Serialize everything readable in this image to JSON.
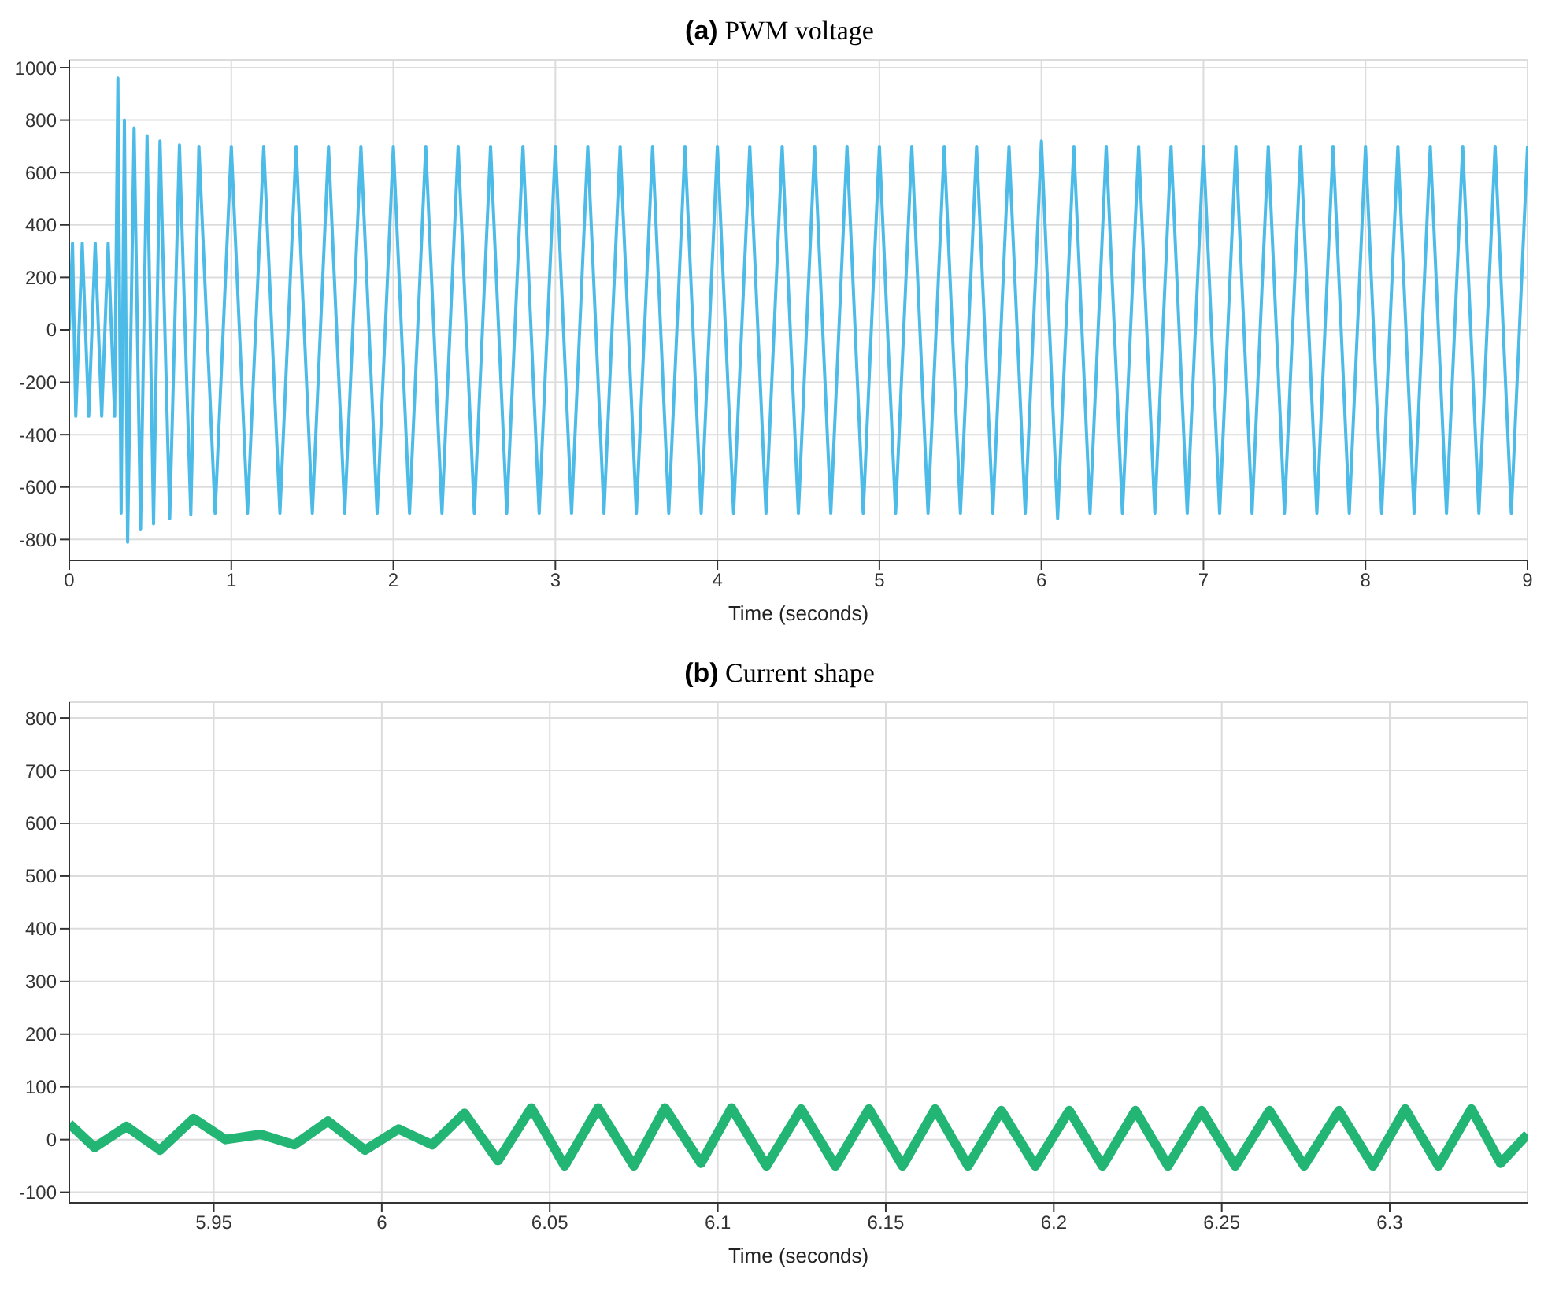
{
  "chart_data": [
    {
      "type": "line",
      "title": "(a) PWM voltage",
      "xlabel": "Time (seconds)",
      "xlim": [
        0,
        9
      ],
      "xticks": [
        0,
        1,
        2,
        3,
        4,
        5,
        6,
        7,
        8,
        9
      ],
      "ylim": [
        -880,
        1030
      ],
      "yticks": [
        -800,
        -600,
        -400,
        -200,
        0,
        200,
        400,
        600,
        800,
        1000
      ],
      "grid": true,
      "legend": false,
      "marker": "none",
      "series": [
        {
          "color": "#4dbbe8",
          "x": [
            0,
            0.02,
            0.04,
            0.08,
            0.12,
            0.16,
            0.2,
            0.24,
            0.28,
            0.3,
            0.32,
            0.34,
            0.36,
            0.4,
            0.44,
            0.48,
            0.52,
            0.56,
            0.62,
            0.68,
            0.75,
            0.8,
            0.9,
            1.0,
            1.1,
            1.2,
            1.3,
            1.4,
            1.5,
            1.6,
            1.7,
            1.8,
            1.9,
            2.0,
            2.1,
            2.2,
            2.3,
            2.4,
            2.5,
            2.6,
            2.7,
            2.8,
            2.9,
            3.0,
            3.1,
            3.2,
            3.3,
            3.4,
            3.5,
            3.6,
            3.7,
            3.8,
            3.9,
            4.0,
            4.1,
            4.2,
            4.3,
            4.4,
            4.5,
            4.6,
            4.7,
            4.8,
            4.9,
            5.0,
            5.1,
            5.2,
            5.3,
            5.4,
            5.5,
            5.6,
            5.7,
            5.8,
            5.9,
            6.0,
            6.1,
            6.2,
            6.3,
            6.4,
            6.5,
            6.6,
            6.7,
            6.8,
            6.9,
            7.0,
            7.1,
            7.2,
            7.3,
            7.4,
            7.5,
            7.6,
            7.7,
            7.8,
            7.9,
            8.0,
            8.1,
            8.2,
            8.3,
            8.4,
            8.5,
            8.6,
            8.7,
            8.8,
            8.9,
            9.0
          ],
          "values": [
            0,
            330,
            -330,
            330,
            -330,
            330,
            -330,
            330,
            -330,
            960,
            -700,
            800,
            -810,
            770,
            -760,
            740,
            -740,
            720,
            -720,
            705,
            -705,
            700,
            -700,
            700,
            -700,
            700,
            -700,
            700,
            -700,
            700,
            -700,
            700,
            -700,
            700,
            -700,
            700,
            -700,
            700,
            -700,
            700,
            -700,
            700,
            -700,
            700,
            -700,
            700,
            -700,
            700,
            -700,
            700,
            -700,
            700,
            -700,
            700,
            -700,
            700,
            -700,
            700,
            -700,
            700,
            -700,
            700,
            -700,
            700,
            -700,
            700,
            -700,
            700,
            -700,
            700,
            -700,
            700,
            -700,
            720,
            -720,
            700,
            -700,
            700,
            -700,
            700,
            -700,
            700,
            -700,
            700,
            -700,
            700,
            -700,
            700,
            -700,
            700,
            -700,
            700,
            -700,
            700,
            -700,
            700,
            -700,
            700,
            -700,
            700,
            -700,
            700,
            -700,
            700
          ]
        }
      ]
    },
    {
      "type": "line",
      "title": "(b) Current shape",
      "xlabel": "Time (seconds)",
      "xlim": [
        5.907,
        6.341
      ],
      "xticks": [
        5.95,
        6,
        6.05,
        6.1,
        6.15,
        6.2,
        6.25,
        6.3
      ],
      "ylim": [
        -120,
        830
      ],
      "yticks": [
        -100,
        0,
        100,
        200,
        300,
        400,
        500,
        600,
        700,
        800
      ],
      "grid": true,
      "legend": false,
      "marker": "none",
      "series": [
        {
          "color": "#22b573",
          "x": [
            5.907,
            5.9145,
            5.924,
            5.934,
            5.944,
            5.9535,
            5.964,
            5.974,
            5.984,
            5.995,
            6.005,
            6.015,
            6.0246,
            6.0346,
            6.0445,
            6.0544,
            6.0644,
            6.075,
            6.0843,
            6.095,
            6.1041,
            6.1145,
            6.1248,
            6.135,
            6.145,
            6.155,
            6.1647,
            6.1745,
            6.1844,
            6.1945,
            6.2046,
            6.2145,
            6.2243,
            6.234,
            6.244,
            6.254,
            6.2642,
            6.2745,
            6.2849,
            6.295,
            6.3046,
            6.3145,
            6.3243,
            6.333,
            6.341
          ],
          "values": [
            30,
            -15,
            25,
            -20,
            40,
            0,
            10,
            -10,
            35,
            -20,
            20,
            -10,
            50,
            -40,
            60,
            -50,
            60,
            -50,
            60,
            -45,
            60,
            -50,
            58,
            -50,
            58,
            -50,
            58,
            -50,
            55,
            -50,
            55,
            -50,
            55,
            -50,
            55,
            -50,
            55,
            -50,
            55,
            -50,
            58,
            -50,
            58,
            -45,
            10
          ]
        }
      ]
    }
  ]
}
